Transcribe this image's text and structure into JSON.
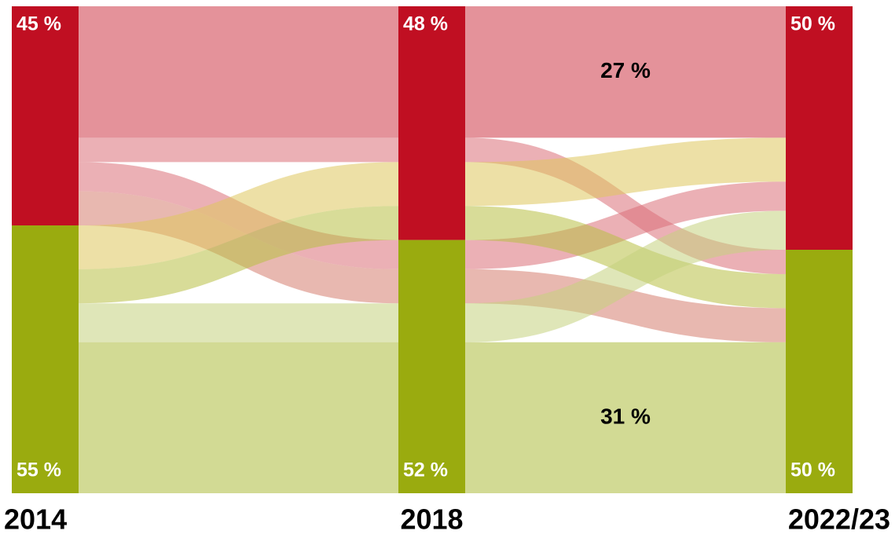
{
  "chart_data": {
    "type": "sankey",
    "categories": [
      "2014",
      "2018",
      "2022/23"
    ],
    "ylim": [
      0,
      100
    ],
    "nodes": [
      {
        "color": "#c00f22",
        "values": [
          45,
          48,
          50
        ],
        "value_labels": [
          "45 %",
          "48 %",
          "50 %"
        ]
      },
      {
        "color": "#9aab0f",
        "values": [
          55,
          52,
          50
        ],
        "value_labels": [
          "55 %",
          "52 %",
          "50 %"
        ]
      }
    ],
    "flows": [
      {
        "route": [
          0,
          0,
          0
        ],
        "value": 27,
        "color": "#cd3847",
        "label": "27 %"
      },
      {
        "route": [
          0,
          0,
          1
        ],
        "value": 5,
        "color": "#da6f78"
      },
      {
        "route": [
          0,
          1,
          0
        ],
        "value": 6,
        "color": "#da6f78"
      },
      {
        "route": [
          0,
          1,
          1
        ],
        "value": 7,
        "color": "#d57e6f"
      },
      {
        "route": [
          1,
          0,
          0
        ],
        "value": 9,
        "color": "#dec65d"
      },
      {
        "route": [
          1,
          0,
          1
        ],
        "value": 7,
        "color": "#b8bf43"
      },
      {
        "route": [
          1,
          1,
          0
        ],
        "value": 8,
        "color": "#c4d17e"
      },
      {
        "route": [
          1,
          1,
          1
        ],
        "value": 31,
        "color": "#adbb3d",
        "label": "31 %"
      }
    ]
  }
}
